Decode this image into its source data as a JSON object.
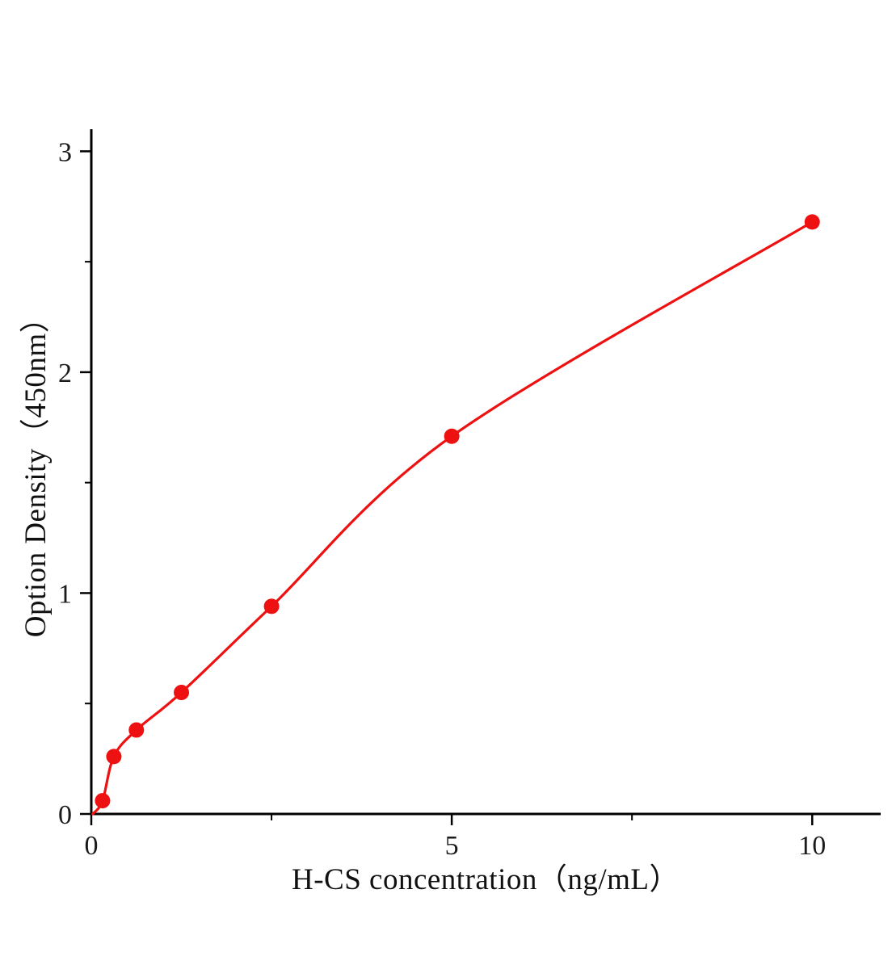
{
  "chart_data": {
    "type": "scatter",
    "title": "",
    "xlabel": "H-CS concentration（ng/mL）",
    "ylabel": "Option Density（450nm）",
    "x": [
      0.156,
      0.313,
      0.625,
      1.25,
      2.5,
      5,
      10
    ],
    "y": [
      0.06,
      0.26,
      0.38,
      0.55,
      0.94,
      1.71,
      2.68
    ],
    "curve_start": [
      0.02,
      0.0
    ],
    "xlim": [
      0,
      10.95
    ],
    "ylim": [
      0,
      3.1
    ],
    "x_major_ticks": [
      0,
      5,
      10
    ],
    "x_minor_ticks": [
      2.5,
      7.5
    ],
    "y_major_ticks": [
      0,
      1,
      2,
      3
    ],
    "y_minor_ticks": [
      0.5,
      1.5,
      2.5
    ],
    "grid": false,
    "legend": null,
    "marker_color": "#ee1111",
    "line_color": "#ee1111",
    "axis_color": "#000000",
    "tick_label_color": "#1a1a1a"
  }
}
